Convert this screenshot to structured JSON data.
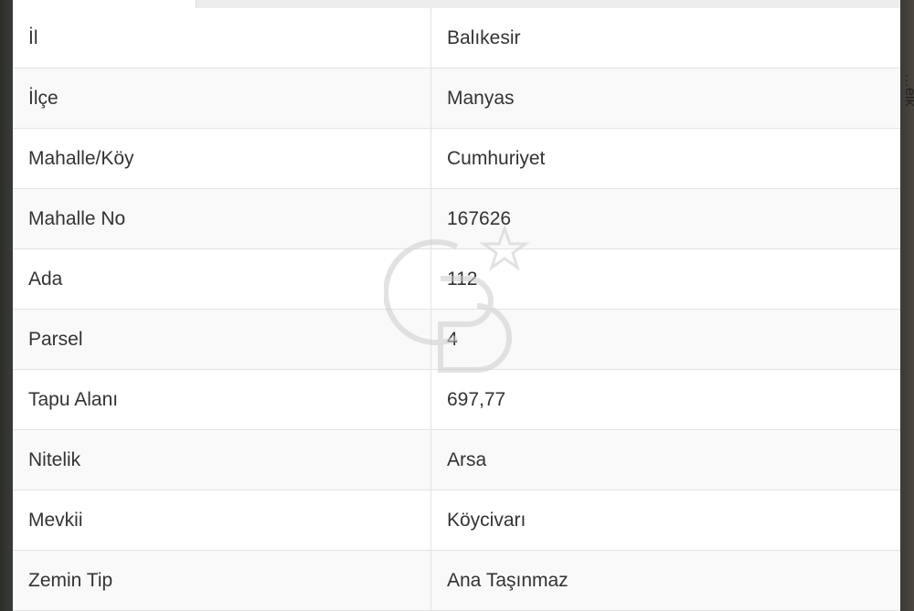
{
  "tabs": [
    {
      "label": ""
    }
  ],
  "rows": [
    {
      "label": "İl",
      "value": "Balıkesir"
    },
    {
      "label": "İlçe",
      "value": "Manyas"
    },
    {
      "label": "Mahalle/Köy",
      "value": "Cumhuriyet"
    },
    {
      "label": "Mahalle No",
      "value": "167626"
    },
    {
      "label": "Ada",
      "value": "112"
    },
    {
      "label": "Parsel",
      "value": "4"
    },
    {
      "label": "Tapu Alanı",
      "value": "697,77"
    },
    {
      "label": "Nitelik",
      "value": "Arsa"
    },
    {
      "label": "Mevkii",
      "value": "Köycivarı"
    },
    {
      "label": "Zemin Tip",
      "value": "Ana Taşınmaz"
    }
  ],
  "watermark": "CB"
}
